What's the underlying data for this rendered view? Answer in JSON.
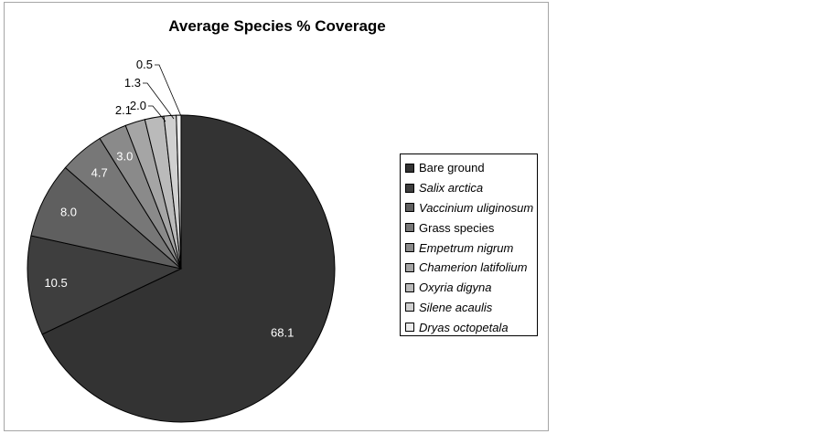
{
  "chart_data": {
    "type": "pie",
    "title": "Average Species % Coverage",
    "categories": [
      "Bare ground",
      "Salix arctica",
      "Vaccinium uliginosum",
      "Grass species",
      "Empetrum nigrum",
      "Chamerion latifolium",
      "Oxyria digyna",
      "Silene acaulis",
      "Dryas octopetala"
    ],
    "values": [
      68.1,
      10.5,
      8.0,
      4.7,
      3.0,
      2.1,
      2.0,
      1.3,
      0.5
    ],
    "value_labels": [
      "68.1",
      "10.5",
      "8.0",
      "4.7",
      "3.0",
      "2.1",
      "2.0",
      "1.3",
      "0.5"
    ],
    "italic": [
      false,
      true,
      true,
      false,
      true,
      true,
      true,
      true,
      true
    ],
    "colors": [
      "#333333",
      "#3e3e3e",
      "#5f5f5f",
      "#777777",
      "#8a8a8a",
      "#a5a5a5",
      "#bababa",
      "#d0d0d0",
      "#ececec"
    ],
    "label_colors": [
      "#ffffff",
      "#ffffff",
      "#ffffff",
      "#ffffff",
      "#ffffff",
      "#000000",
      "#000000",
      "#000000",
      "#000000"
    ],
    "legend_position": "right",
    "start_angle": "12 o'clock",
    "direction": "clockwise"
  }
}
